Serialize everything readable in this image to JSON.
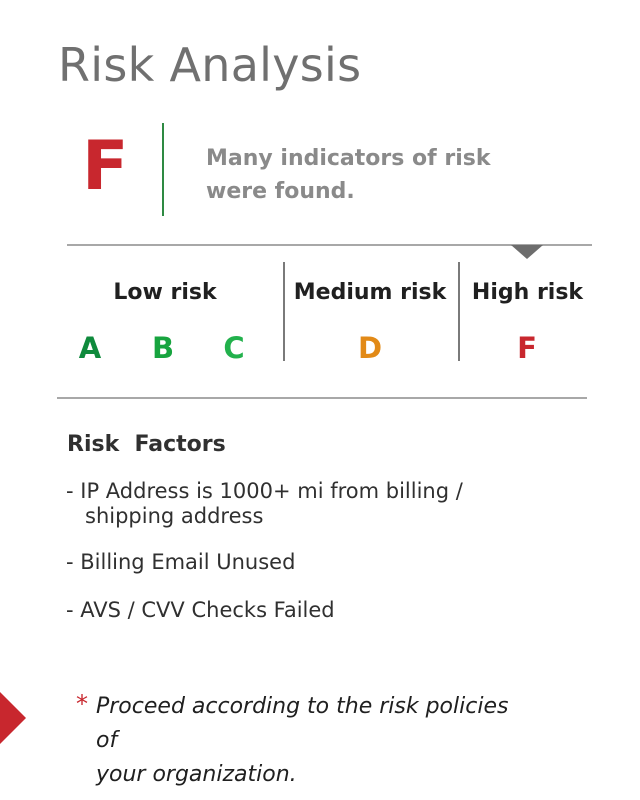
{
  "title": "Risk Analysis",
  "summary": {
    "grade": "F",
    "message_line1": "Many indicators of risk",
    "message_line2": "were found."
  },
  "scale": {
    "low_label": "Low risk",
    "medium_label": "Medium risk",
    "high_label": "High risk",
    "grades": [
      "A",
      "B",
      "C",
      "D",
      "F"
    ],
    "current": "F"
  },
  "risk_factors": {
    "heading": "Risk  Factors",
    "items": [
      {
        "line1": "- IP Address is 1000+ mi from billing /",
        "line2": "shipping address"
      },
      {
        "line1": "- Billing Email Unused"
      },
      {
        "line1": "- AVS / CVV Checks Failed"
      }
    ]
  },
  "note": {
    "asterisk": "*",
    "line1": "Proceed according to the risk policies of",
    "line2": "your organization."
  },
  "colors": {
    "high_risk": "#c8272e",
    "medium_risk": "#e28a17",
    "low_risk_a": "#0f8a3c",
    "low_risk_b": "#17a43f",
    "low_risk_c": "#22b14c",
    "divider": "#2e8a43"
  }
}
